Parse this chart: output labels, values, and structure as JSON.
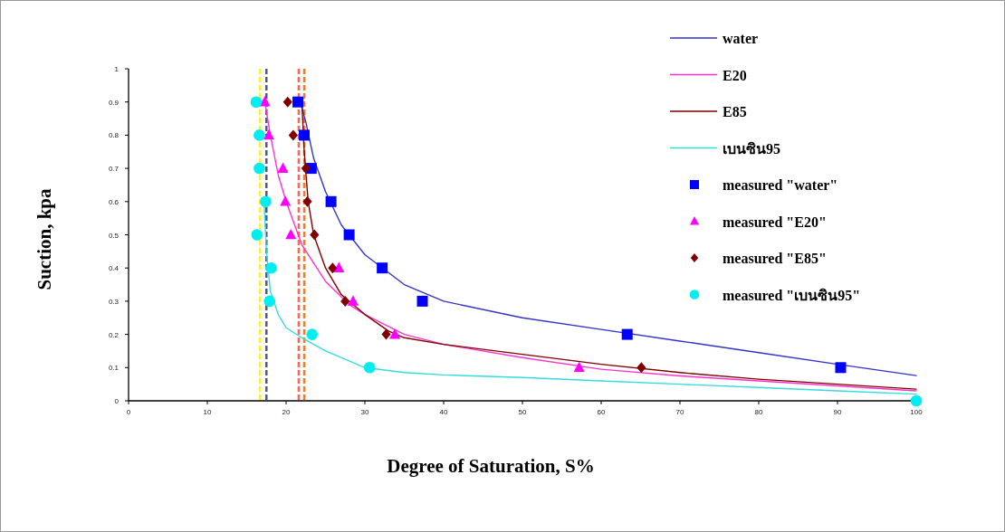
{
  "chart_data": {
    "type": "line",
    "xlabel": "Degree of Saturation, S%",
    "ylabel": "Suction, kpa",
    "xlim": [
      0,
      100
    ],
    "ylim": [
      0,
      1
    ],
    "xticks": [
      0,
      10,
      20,
      30,
      40,
      50,
      60,
      70,
      80,
      90,
      100
    ],
    "yticks": [
      0,
      0.1,
      0.2,
      0.3,
      0.4,
      0.5,
      0.6,
      0.7,
      0.8,
      0.9,
      1
    ],
    "grid": false,
    "legend": "top right",
    "series": [
      {
        "name": "water",
        "color": "#3333cc",
        "marker": "none",
        "x": [
          21.8,
          22.5,
          23.5,
          25,
          27,
          30,
          35,
          40,
          50,
          60,
          70,
          80,
          90,
          100
        ],
        "values": [
          0.9,
          0.84,
          0.73,
          0.63,
          0.53,
          0.44,
          0.35,
          0.3,
          0.25,
          0.215,
          0.18,
          0.145,
          0.11,
          0.076
        ]
      },
      {
        "name": "E20",
        "color": "#ff33cc",
        "marker": "none",
        "x": [
          17.3,
          18,
          19,
          20,
          22,
          25,
          28,
          30,
          35,
          40,
          50,
          60,
          70,
          80,
          90,
          100
        ],
        "values": [
          0.9,
          0.8,
          0.68,
          0.6,
          0.47,
          0.36,
          0.29,
          0.26,
          0.2,
          0.17,
          0.13,
          0.095,
          0.075,
          0.06,
          0.045,
          0.03
        ]
      },
      {
        "name": "E85",
        "color": "#800000",
        "marker": "none",
        "x": [
          22,
          22.3,
          22.8,
          23.5,
          25,
          27,
          30,
          33,
          35,
          40,
          50,
          60,
          70,
          80,
          90,
          100
        ],
        "values": [
          0.9,
          0.75,
          0.6,
          0.5,
          0.4,
          0.32,
          0.26,
          0.21,
          0.19,
          0.17,
          0.14,
          0.11,
          0.085,
          0.065,
          0.05,
          0.035
        ]
      },
      {
        "name": "เบนซิน95",
        "color": "#33dddd",
        "marker": "none",
        "x": [
          17.2,
          17.5,
          18,
          19,
          20,
          22,
          25,
          28,
          30,
          35,
          40,
          50,
          60,
          70,
          80,
          90,
          100
        ],
        "values": [
          0.6,
          0.45,
          0.33,
          0.26,
          0.22,
          0.19,
          0.15,
          0.12,
          0.1,
          0.085,
          0.078,
          0.07,
          0.06,
          0.05,
          0.04,
          0.03,
          0.02
        ]
      },
      {
        "name": "measured \"water\"",
        "type": "scatter",
        "color": "#0000ff",
        "marker": "square",
        "x": [
          21.5,
          22.3,
          23.2,
          25.7,
          28,
          32.2,
          37.3,
          63.3,
          90.4
        ],
        "values": [
          0.9,
          0.8,
          0.7,
          0.6,
          0.5,
          0.4,
          0.3,
          0.2,
          0.1
        ]
      },
      {
        "name": "measured \"E20\"",
        "type": "scatter",
        "color": "#ff00ff",
        "marker": "triangle",
        "x": [
          17.3,
          17.8,
          19.6,
          19.9,
          20.6,
          26.7,
          28.5,
          33.8,
          57.2
        ],
        "values": [
          0.9,
          0.8,
          0.7,
          0.6,
          0.5,
          0.4,
          0.3,
          0.2,
          0.1
        ]
      },
      {
        "name": "measured \"E85\"",
        "type": "scatter",
        "color": "#800000",
        "marker": "diamond",
        "x": [
          20.2,
          20.9,
          22.5,
          22.7,
          23.6,
          25.9,
          27.5,
          32.7,
          65.1
        ],
        "values": [
          0.9,
          0.8,
          0.7,
          0.6,
          0.5,
          0.4,
          0.3,
          0.2,
          0.1
        ]
      },
      {
        "name": "measured \"เบนซิน95\"",
        "type": "scatter",
        "color": "#00eeee",
        "marker": "circle",
        "x": [
          16.2,
          16.6,
          16.6,
          17.4,
          16.3,
          18.1,
          17.9,
          23.3,
          30.6,
          100
        ],
        "values": [
          0.9,
          0.8,
          0.7,
          0.6,
          0.5,
          0.4,
          0.3,
          0.2,
          0.1,
          0
        ]
      }
    ],
    "ref_lines": [
      {
        "axis": "x",
        "value": 16.7,
        "color": "#ffee33",
        "line_style": "dashed"
      },
      {
        "axis": "x",
        "value": 17.5,
        "color": "#555588",
        "line_style": "dashed"
      },
      {
        "axis": "x",
        "value": 21.6,
        "color": "#ff6655",
        "line_style": "dashed"
      },
      {
        "axis": "x",
        "value": 22.3,
        "color": "#ff7722",
        "line_style": "dashed"
      }
    ]
  }
}
